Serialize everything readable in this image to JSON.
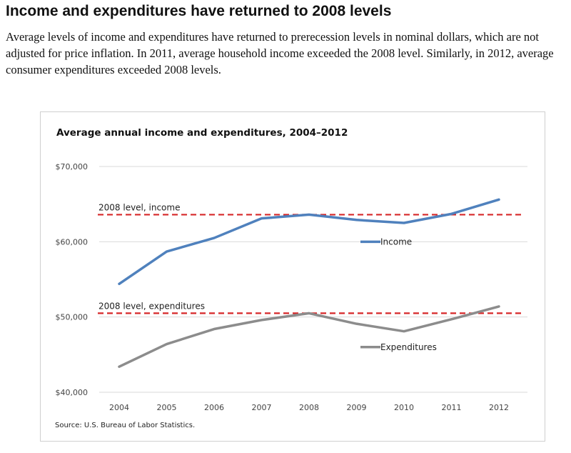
{
  "article": {
    "headline": "Income and expenditures have returned to 2008 levels",
    "intro": "Average levels of income and expenditures have returned to prerecession levels in nominal dollars, which are not adjusted for price inflation. In 2011, average household income exceeded the 2008 level. Similarly, in 2012, average consumer expenditures exceeded 2008 levels."
  },
  "chart_data": {
    "type": "line",
    "title": "Average annual income and expenditures, 2004–2012",
    "xlabel": "",
    "ylabel": "",
    "ylim": [
      40000,
      70000
    ],
    "y_ticks": [
      40000,
      50000,
      60000,
      70000
    ],
    "y_tick_labels": [
      "$40,000",
      "$50,000",
      "$60,000",
      "$70,000"
    ],
    "grid": "horizontal",
    "legend": "inline labels",
    "categories": [
      "2004",
      "2005",
      "2006",
      "2007",
      "2008",
      "2009",
      "2010",
      "2011",
      "2012"
    ],
    "series": [
      {
        "name": "Income",
        "color": "#4f81bd",
        "values": [
          54400,
          58700,
          60500,
          63100,
          63600,
          62900,
          62500,
          63700,
          65600
        ]
      },
      {
        "name": "Expenditures",
        "color": "#8c8c8c",
        "values": [
          43400,
          46400,
          48400,
          49600,
          50500,
          49100,
          48100,
          49700,
          51400
        ]
      }
    ],
    "reference_lines": [
      {
        "label": "2008 level, income",
        "value": 63600,
        "color": "#d62728"
      },
      {
        "label": "2008 level, expenditures",
        "value": 50500,
        "color": "#d62728"
      }
    ],
    "source": "Source: U.S. Bureau of Labor Statistics."
  }
}
